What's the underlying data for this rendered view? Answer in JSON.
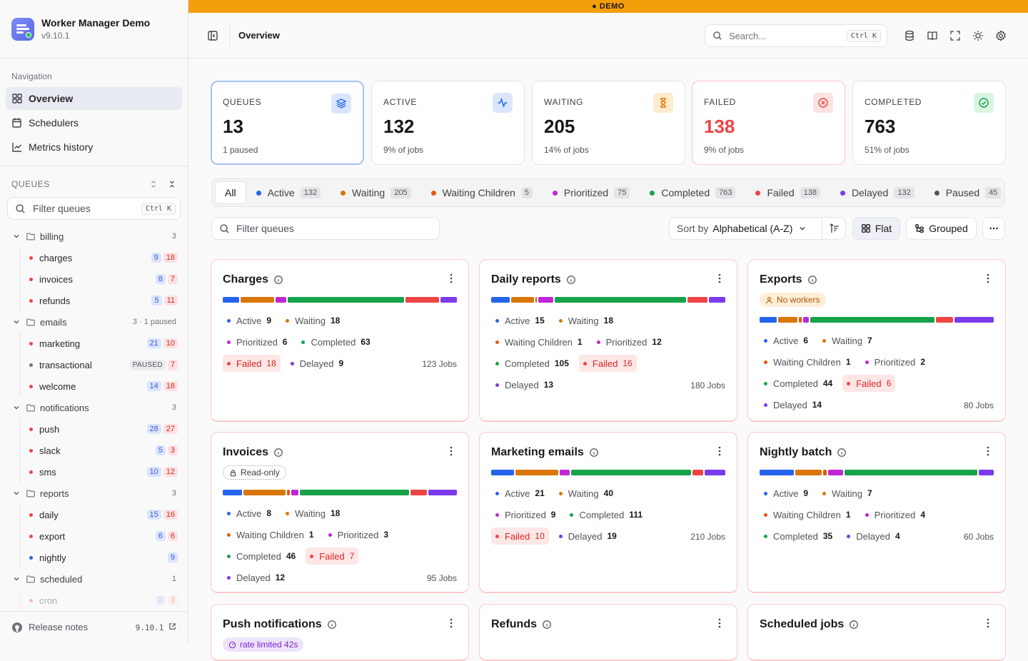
{
  "app": {
    "title": "Worker Manager Demo",
    "version": "v9.10.1"
  },
  "banner": "DEMO",
  "nav": {
    "label": "Navigation",
    "items": [
      {
        "label": "Overview"
      },
      {
        "label": "Schedulers"
      },
      {
        "label": "Metrics history"
      }
    ]
  },
  "queues_section": {
    "label": "QUEUES",
    "filter_placeholder": "Filter queues",
    "shortcut": "Ctrl K"
  },
  "groups": [
    {
      "name": "billing",
      "count": "3",
      "items": [
        {
          "name": "charges",
          "a": "9",
          "b": "18"
        },
        {
          "name": "invoices",
          "a": "8",
          "b": "7"
        },
        {
          "name": "refunds",
          "a": "5",
          "b": "11"
        }
      ]
    },
    {
      "name": "emails",
      "count": "3 · 1 paused",
      "items": [
        {
          "name": "marketing",
          "a": "21",
          "b": "10"
        },
        {
          "name": "transactional",
          "tag": "PAUSED",
          "b": "7"
        },
        {
          "name": "welcome",
          "a": "14",
          "b": "18"
        }
      ]
    },
    {
      "name": "notifications",
      "count": "3",
      "items": [
        {
          "name": "push",
          "a": "28",
          "b": "27"
        },
        {
          "name": "slack",
          "a": "5",
          "b": "3"
        },
        {
          "name": "sms",
          "a": "10",
          "b": "12"
        }
      ]
    },
    {
      "name": "reports",
      "count": "3",
      "items": [
        {
          "name": "daily",
          "a": "15",
          "b": "16"
        },
        {
          "name": "export",
          "a": "6",
          "b": "6"
        },
        {
          "name": "nightly",
          "a": "9"
        }
      ]
    },
    {
      "name": "scheduled",
      "count": "1",
      "items": [
        {
          "name": "cron",
          "a": "2",
          "b": "3"
        }
      ]
    }
  ],
  "footer": {
    "label": "Release notes",
    "version": "9.10.1"
  },
  "topbar": {
    "title": "Overview",
    "search_placeholder": "Search...",
    "shortcut": "Ctrl K"
  },
  "stats": [
    {
      "label": "QUEUES",
      "value": "13",
      "sub": "1 paused",
      "icon": "layers-icon"
    },
    {
      "label": "ACTIVE",
      "value": "132",
      "sub": "9% of jobs",
      "icon": "activity-icon"
    },
    {
      "label": "WAITING",
      "value": "205",
      "sub": "14% of jobs",
      "icon": "hourglass-icon"
    },
    {
      "label": "FAILED",
      "value": "138",
      "sub": "9% of jobs",
      "icon": "x-circle-icon"
    },
    {
      "label": "COMPLETED",
      "value": "763",
      "sub": "51% of jobs",
      "icon": "check-circle-icon"
    }
  ],
  "tabs": [
    {
      "label": "All"
    },
    {
      "label": "Active",
      "count": "132",
      "color": "#2563eb"
    },
    {
      "label": "Waiting",
      "count": "205",
      "color": "#d97706"
    },
    {
      "label": "Waiting Children",
      "count": "5",
      "color": "#ea580c"
    },
    {
      "label": "Prioritized",
      "count": "75",
      "color": "#c026d3"
    },
    {
      "label": "Completed",
      "count": "763",
      "color": "#16a34a"
    },
    {
      "label": "Failed",
      "count": "138",
      "color": "#ef4444"
    },
    {
      "label": "Delayed",
      "count": "132",
      "color": "#7c3aed"
    },
    {
      "label": "Paused",
      "count": "45",
      "color": "#52525b"
    }
  ],
  "toolbar": {
    "filter_placeholder": "Filter queues",
    "sort_label": "Sort by",
    "sort_value": "Alphabetical (A-Z)",
    "flat": "Flat",
    "grouped": "Grouped"
  },
  "colors": {
    "active": "#2563eb",
    "waiting": "#d97706",
    "waiting_children": "#ea580c",
    "prioritized": "#c026d3",
    "completed": "#16a34a",
    "failed": "#ef4444",
    "delayed": "#7c3aed"
  },
  "cards": [
    {
      "title": "Charges",
      "jobs": "123 Jobs",
      "stats": [
        [
          "Active",
          "9"
        ],
        [
          "Waiting",
          "18"
        ],
        [
          "Prioritized",
          "6"
        ],
        [
          "Completed",
          "63"
        ],
        [
          "Failed",
          "18"
        ],
        [
          "Delayed",
          "9"
        ]
      ]
    },
    {
      "title": "Daily reports",
      "jobs": "180 Jobs",
      "stats": [
        [
          "Active",
          "15"
        ],
        [
          "Waiting",
          "18"
        ],
        [
          "Waiting Children",
          "1"
        ],
        [
          "Prioritized",
          "12"
        ],
        [
          "Completed",
          "105"
        ],
        [
          "Failed",
          "16"
        ],
        [
          "Delayed",
          "13"
        ]
      ]
    },
    {
      "title": "Exports",
      "pill": "No workers",
      "jobs": "80 Jobs",
      "stats": [
        [
          "Active",
          "6"
        ],
        [
          "Waiting",
          "7"
        ],
        [
          "Waiting Children",
          "1"
        ],
        [
          "Prioritized",
          "2"
        ],
        [
          "Completed",
          "44"
        ],
        [
          "Failed",
          "6"
        ],
        [
          "Delayed",
          "14"
        ]
      ]
    },
    {
      "title": "Invoices",
      "pill": "Read-only",
      "jobs": "95 Jobs",
      "stats": [
        [
          "Active",
          "8"
        ],
        [
          "Waiting",
          "18"
        ],
        [
          "Waiting Children",
          "1"
        ],
        [
          "Prioritized",
          "3"
        ],
        [
          "Completed",
          "46"
        ],
        [
          "Failed",
          "7"
        ],
        [
          "Delayed",
          "12"
        ]
      ]
    },
    {
      "title": "Marketing emails",
      "jobs": "210 Jobs",
      "stats": [
        [
          "Active",
          "21"
        ],
        [
          "Waiting",
          "40"
        ],
        [
          "Prioritized",
          "9"
        ],
        [
          "Completed",
          "111"
        ],
        [
          "Failed",
          "10"
        ],
        [
          "Delayed",
          "19"
        ]
      ]
    },
    {
      "title": "Nightly batch",
      "jobs": "60 Jobs",
      "stats": [
        [
          "Active",
          "9"
        ],
        [
          "Waiting",
          "7"
        ],
        [
          "Waiting Children",
          "1"
        ],
        [
          "Prioritized",
          "4"
        ],
        [
          "Completed",
          "35"
        ],
        [
          "Delayed",
          "4"
        ]
      ]
    },
    {
      "title": "Push notifications",
      "pill": "rate limited 42s"
    },
    {
      "title": "Refunds"
    },
    {
      "title": "Scheduled jobs"
    }
  ]
}
